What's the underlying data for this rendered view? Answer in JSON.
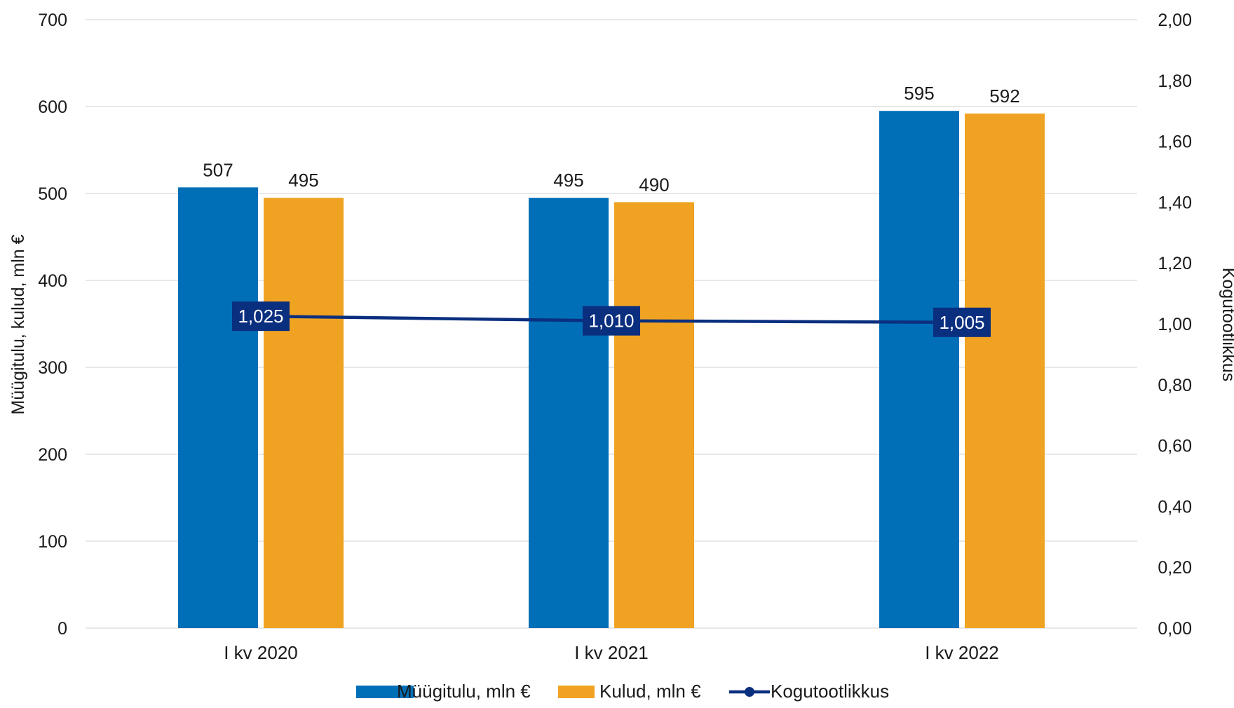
{
  "chart_data": {
    "type": "bar",
    "categories": [
      "I kv 2020",
      "I kv 2021",
      "I kv 2022"
    ],
    "series": [
      {
        "name": "Müügitulu, mln €",
        "type": "bar",
        "axis": "left",
        "values": [
          507,
          495,
          595
        ],
        "labels": [
          "507",
          "495",
          "595"
        ],
        "color": "#006fb7"
      },
      {
        "name": "Kulud, mln €",
        "type": "bar",
        "axis": "left",
        "values": [
          495,
          490,
          592
        ],
        "labels": [
          "495",
          "490",
          "592"
        ],
        "color": "#f0a322"
      },
      {
        "name": "Kogutootlikkus",
        "type": "line",
        "axis": "right",
        "values": [
          1.025,
          1.01,
          1.005
        ],
        "labels": [
          "1,025",
          "1,010",
          "1,005"
        ],
        "color": "#0b2f7f"
      }
    ],
    "ylabel": "Müügitulu, kulud, mln €",
    "y2label": "Kogutootlikkus",
    "ylim": [
      0,
      700
    ],
    "y2lim": [
      0,
      2
    ],
    "yticks": [
      "0",
      "100",
      "200",
      "300",
      "400",
      "500",
      "600",
      "700"
    ],
    "y2ticks": [
      "0,00",
      "0,20",
      "0,40",
      "0,60",
      "0,80",
      "1,00",
      "1,20",
      "1,40",
      "1,60",
      "1,80",
      "2,00"
    ],
    "grid": true,
    "legend": "bottom",
    "gridColor": "#d9d9d9"
  }
}
